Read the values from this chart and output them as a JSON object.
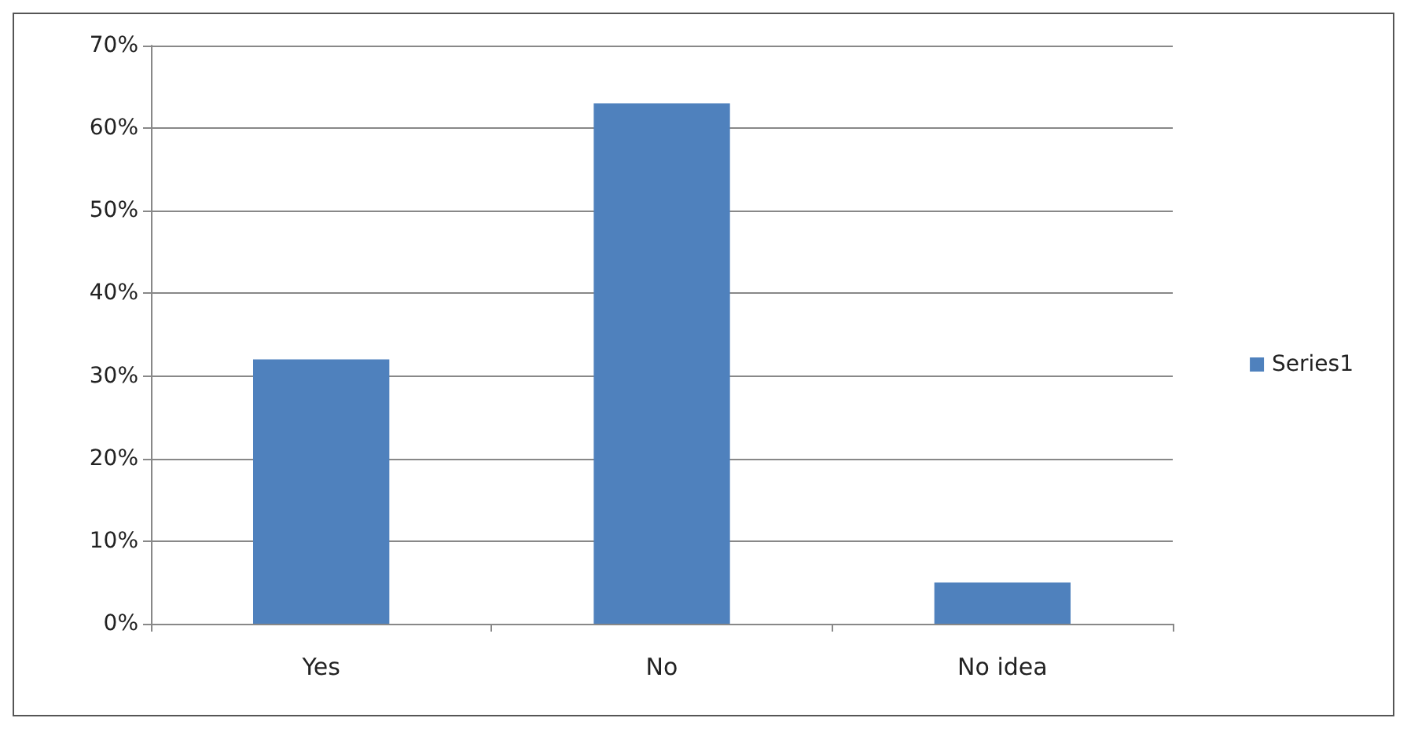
{
  "chart_data": {
    "type": "bar",
    "categories": [
      "Yes",
      "No",
      "No idea"
    ],
    "series": [
      {
        "name": "Series1",
        "color": "#4f81bd",
        "values": [
          32,
          63,
          5
        ]
      }
    ],
    "ylim": [
      0,
      70
    ],
    "yticks": [
      {
        "value": 0,
        "label": "0%"
      },
      {
        "value": 10,
        "label": "10%"
      },
      {
        "value": 20,
        "label": "20%"
      },
      {
        "value": 30,
        "label": "30%"
      },
      {
        "value": 40,
        "label": "40%"
      },
      {
        "value": 50,
        "label": "50%"
      },
      {
        "value": 60,
        "label": "60%"
      },
      {
        "value": 70,
        "label": "70%"
      }
    ],
    "grid": "y",
    "legend": "right"
  }
}
